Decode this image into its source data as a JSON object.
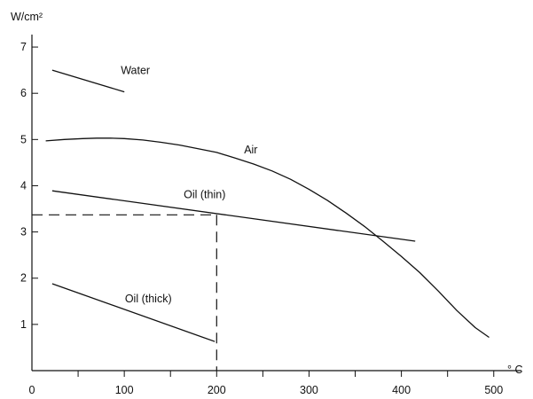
{
  "chart_data": {
    "type": "line",
    "title": "",
    "xlabel": "° C",
    "ylabel": "W/cm²",
    "xlim": [
      0,
      530
    ],
    "ylim": [
      0,
      7.5
    ],
    "x_ticks": [
      0,
      100,
      200,
      300,
      400,
      500
    ],
    "x_minor_ticks": [
      50,
      150,
      250,
      350,
      450
    ],
    "y_ticks": [
      1,
      2,
      3,
      4,
      5,
      6,
      7
    ],
    "grid": false,
    "series": [
      {
        "name": "Water",
        "x": [
          22,
          100
        ],
        "y": [
          6.5,
          6.03
        ],
        "label_at": [
          112,
          6.42
        ]
      },
      {
        "name": "Air",
        "x": [
          15,
          35,
          55,
          70,
          85,
          100,
          120,
          140,
          160,
          180,
          200,
          220,
          240,
          260,
          280,
          300,
          320,
          340,
          360,
          380,
          400,
          420,
          440,
          460,
          480,
          495
        ],
        "y": [
          4.97,
          5.0,
          5.02,
          5.03,
          5.03,
          5.02,
          4.99,
          4.94,
          4.88,
          4.8,
          4.72,
          4.6,
          4.47,
          4.32,
          4.14,
          3.92,
          3.68,
          3.41,
          3.12,
          2.8,
          2.47,
          2.12,
          1.72,
          1.3,
          0.93,
          0.72
        ],
        "label_at": [
          237,
          4.7
        ]
      },
      {
        "name": "Oil (thin)",
        "x": [
          22,
          415
        ],
        "y": [
          3.89,
          2.8
        ],
        "label_at": [
          187,
          3.73
        ]
      },
      {
        "name": "Oil (thick)",
        "x": [
          22,
          198
        ],
        "y": [
          1.88,
          0.63
        ],
        "label_at": [
          126,
          1.48
        ]
      }
    ],
    "reference_lines": {
      "x": 200,
      "y": 3.37,
      "style": "dashed"
    }
  }
}
